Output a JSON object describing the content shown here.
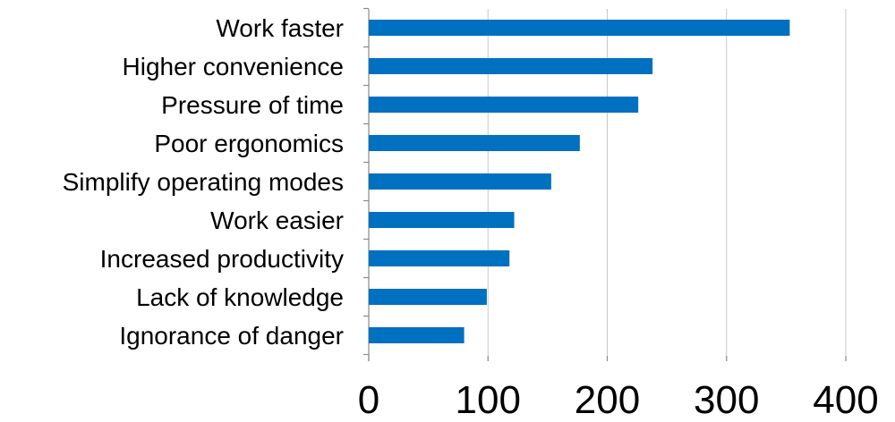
{
  "chart_data": {
    "type": "bar",
    "orientation": "horizontal",
    "categories": [
      "Work faster",
      "Higher convenience",
      "Pressure of time",
      "Poor ergonomics",
      "Simplify operating modes",
      "Work easier",
      "Increased productivity",
      "Lack of knowledge",
      "Ignorance of danger"
    ],
    "values": [
      353,
      238,
      226,
      177,
      153,
      122,
      118,
      99,
      80
    ],
    "xlim": [
      0,
      400
    ],
    "xticks": [
      0,
      100,
      200,
      300,
      400
    ],
    "title": "",
    "xlabel": "",
    "ylabel": "",
    "grid": "vertical",
    "legend": "none",
    "bar_color": "#0070c0"
  }
}
